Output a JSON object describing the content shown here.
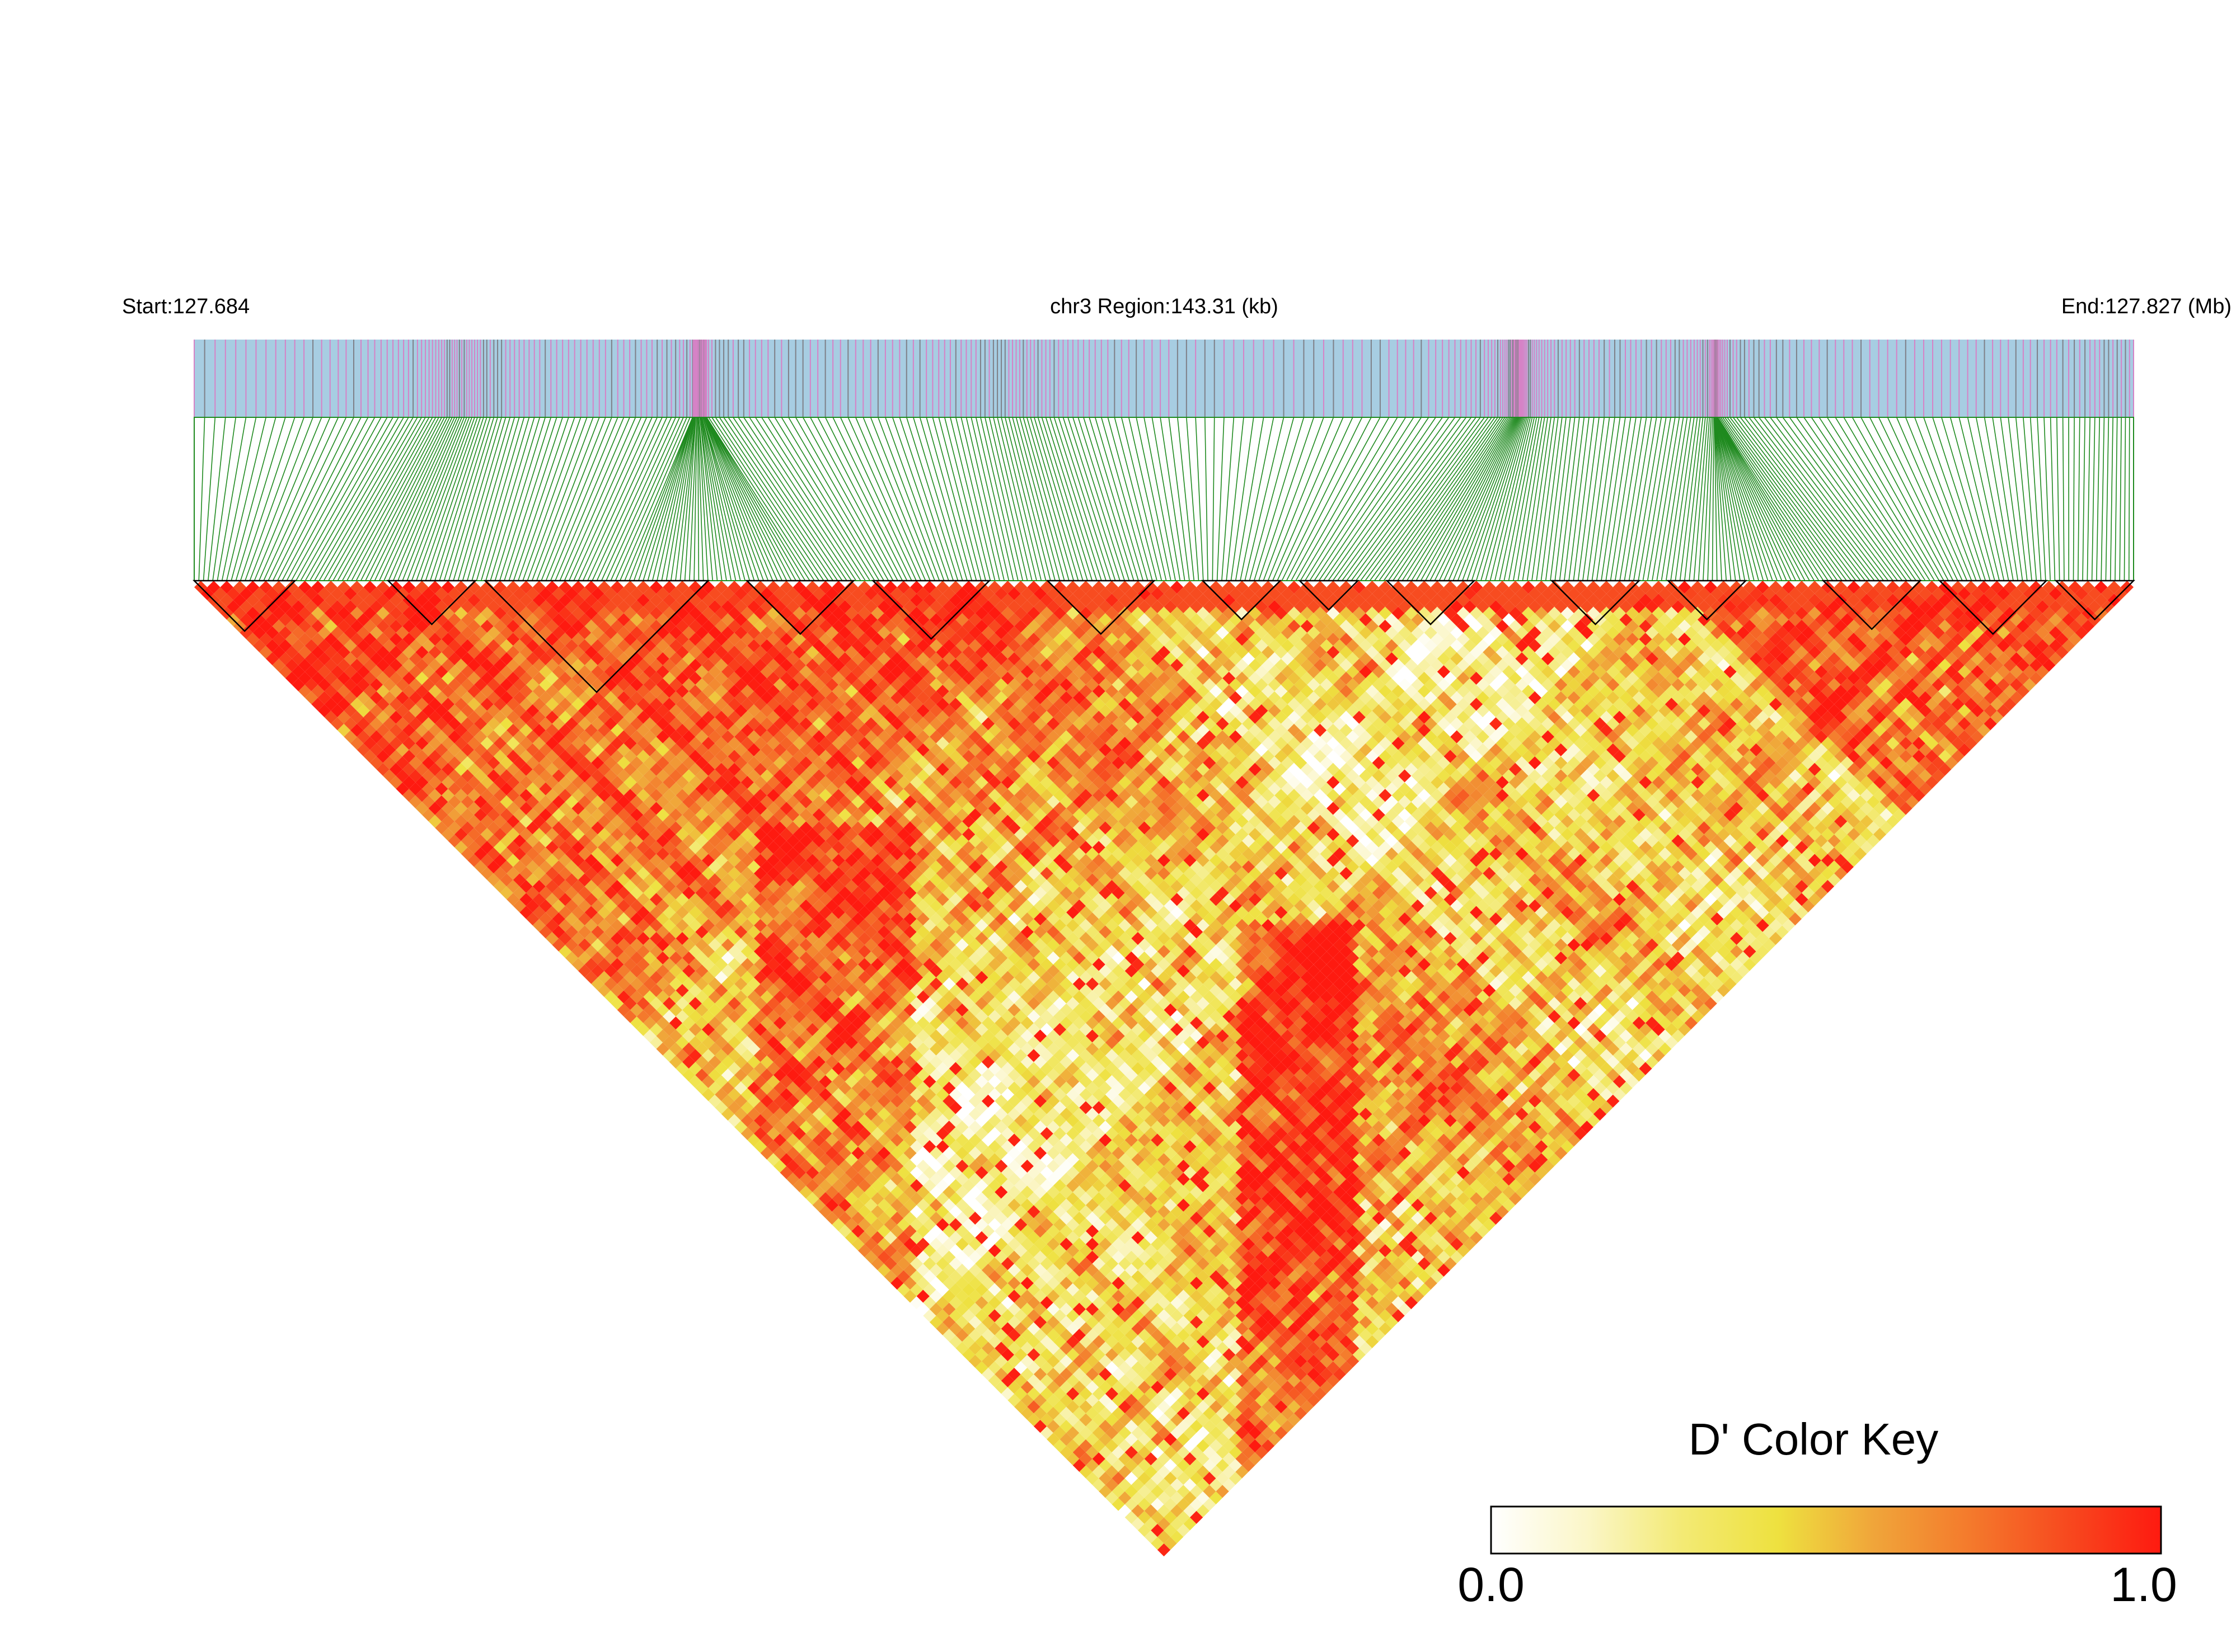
{
  "chart_data": {
    "type": "heatmap",
    "subtype": "linkage-disequilibrium-triangle",
    "title": "",
    "labels": {
      "start": "Start:127.684",
      "region": "chr3 Region:143.31 (kb)",
      "end": "End:127.827 (Mb)"
    },
    "region": {
      "chromosome": "chr3",
      "start_mb": 127.684,
      "end_mb": 127.827,
      "length_kb": 143.31
    },
    "color_key": {
      "title": "D' Color Key",
      "min_label": "0.0",
      "max_label": "1.0",
      "min": 0.0,
      "max": 1.0,
      "colors": [
        "#ffffff",
        "#fbf6c8",
        "#f3ea74",
        "#eee13f",
        "#f0a53a",
        "#f47a2c",
        "#f74a1f",
        "#fe1a10"
      ]
    },
    "colors": {
      "track_background": "#a7cde2",
      "snp_tick_pink": "#d682c6",
      "snp_tick_gray": "#7f8088",
      "connector_lines": "#1f8a1f",
      "block_outline": "#000000"
    },
    "snp_count": 420,
    "haplotype_blocks": [
      [
        0.0,
        0.052
      ],
      [
        0.1,
        0.145
      ],
      [
        0.15,
        0.265
      ],
      [
        0.285,
        0.34
      ],
      [
        0.35,
        0.41
      ],
      [
        0.44,
        0.495
      ],
      [
        0.52,
        0.56
      ],
      [
        0.57,
        0.6
      ],
      [
        0.615,
        0.66
      ],
      [
        0.7,
        0.745
      ],
      [
        0.76,
        0.8
      ],
      [
        0.84,
        0.89
      ],
      [
        0.9,
        0.955
      ],
      [
        0.96,
        1.0
      ]
    ],
    "d_prime_regions": [
      {
        "from": 0.0,
        "to": 0.45,
        "mean_d_prime": 0.88
      },
      {
        "from": 0.45,
        "to": 0.58,
        "mean_d_prime": 0.55
      },
      {
        "from": 0.58,
        "to": 0.76,
        "mean_d_prime": 0.3
      },
      {
        "from": 0.76,
        "to": 0.93,
        "mean_d_prime": 0.86
      },
      {
        "from": 0.93,
        "to": 1.0,
        "mean_d_prime": 0.8
      }
    ]
  }
}
